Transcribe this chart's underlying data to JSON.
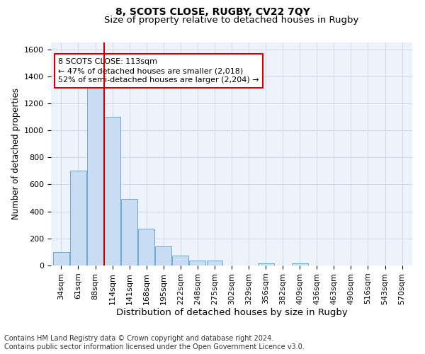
{
  "title": "8, SCOTS CLOSE, RUGBY, CV22 7QY",
  "subtitle": "Size of property relative to detached houses in Rugby",
  "xlabel": "Distribution of detached houses by size in Rugby",
  "ylabel": "Number of detached properties",
  "footer_line1": "Contains HM Land Registry data © Crown copyright and database right 2024.",
  "footer_line2": "Contains public sector information licensed under the Open Government Licence v3.0.",
  "categories": [
    "34sqm",
    "61sqm",
    "88sqm",
    "114sqm",
    "141sqm",
    "168sqm",
    "195sqm",
    "222sqm",
    "248sqm",
    "275sqm",
    "302sqm",
    "329sqm",
    "356sqm",
    "382sqm",
    "409sqm",
    "436sqm",
    "463sqm",
    "490sqm",
    "516sqm",
    "543sqm",
    "570sqm"
  ],
  "values": [
    100,
    700,
    1330,
    1100,
    490,
    275,
    140,
    75,
    35,
    35,
    0,
    0,
    15,
    0,
    15,
    0,
    0,
    0,
    0,
    0,
    0
  ],
  "bar_color": "#c9ddf2",
  "bar_edge_color": "#6aaad4",
  "grid_color": "#d0d8e8",
  "bg_color": "#edf2fb",
  "annotation_line1": "8 SCOTS CLOSE: 113sqm",
  "annotation_line2": "← 47% of detached houses are smaller (2,018)",
  "annotation_line3": "52% of semi-detached houses are larger (2,204) →",
  "vline_x": 2.5,
  "vline_color": "#cc0000",
  "annotation_box_edge_color": "#cc0000",
  "ylim": [
    0,
    1650
  ],
  "yticks": [
    0,
    200,
    400,
    600,
    800,
    1000,
    1200,
    1400,
    1600
  ],
  "title_fontsize": 10,
  "subtitle_fontsize": 9.5,
  "xlabel_fontsize": 9.5,
  "ylabel_fontsize": 8.5,
  "tick_fontsize": 8,
  "footer_fontsize": 7,
  "annotation_fontsize": 8
}
